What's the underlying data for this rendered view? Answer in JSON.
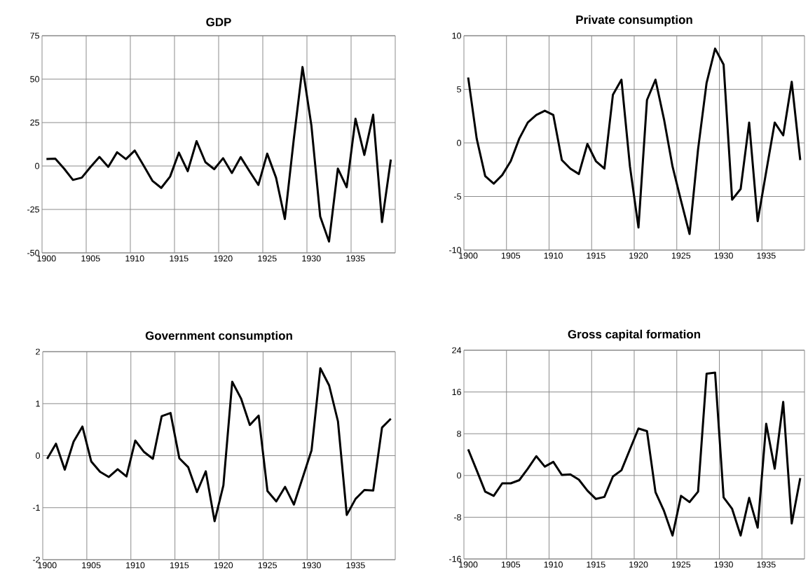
{
  "chart_data": [
    {
      "type": "line",
      "title": "GDP",
      "categories": [
        "1900",
        null,
        null,
        null,
        null,
        "1905",
        null,
        null,
        null,
        null,
        "1910",
        null,
        null,
        null,
        null,
        "1915",
        null,
        null,
        null,
        null,
        "1920",
        null,
        null,
        null,
        null,
        "1925",
        null,
        null,
        null,
        null,
        "1930",
        null,
        null,
        null,
        null,
        "1935",
        null,
        null,
        null,
        null
      ],
      "values": [
        4,
        4.2,
        -1.5,
        -8,
        -6.7,
        -0.5,
        5.2,
        -0.5,
        7.9,
        4,
        8.9,
        0.3,
        -8.5,
        -12.6,
        -6.1,
        7.7,
        -3,
        14.3,
        2.2,
        -1.8,
        4.5,
        -4,
        5.1,
        -3,
        -10.9,
        7.1,
        -6.7,
        -30.5,
        15,
        57,
        23.5,
        -29,
        -43.5,
        -1.5,
        -12.2,
        27.2,
        6.4,
        29.5,
        -32.3,
        3.7
      ],
      "color": "#000000",
      "ylim": [
        -50,
        75
      ],
      "yticks": [
        -50,
        -25,
        0,
        25,
        50,
        75
      ],
      "grid": true
    },
    {
      "type": "line",
      "title": "Private consumption",
      "categories": [
        "1900",
        null,
        null,
        null,
        null,
        "1905",
        null,
        null,
        null,
        null,
        "1910",
        null,
        null,
        null,
        null,
        "1915",
        null,
        null,
        null,
        null,
        "1920",
        null,
        null,
        null,
        null,
        "1925",
        null,
        null,
        null,
        null,
        "1930",
        null,
        null,
        null,
        null,
        "1935",
        null,
        null,
        null,
        null
      ],
      "values": [
        6.1,
        0.4,
        -3.1,
        -3.8,
        -3,
        -1.7,
        0.4,
        1.9,
        2.6,
        3,
        2.6,
        -1.6,
        -2.4,
        -2.9,
        -0.1,
        -1.7,
        -2.4,
        4.5,
        5.9,
        -2.2,
        -7.9,
        4,
        5.9,
        2.2,
        -2.2,
        -5.4,
        -8.5,
        -0.6,
        5.6,
        8.8,
        7.3,
        -5.3,
        -4.3,
        1.9,
        -7.3,
        -2.7,
        1.9,
        0.7,
        5.7,
        -1.6
      ],
      "color": "#000000",
      "ylim": [
        -10,
        10
      ],
      "yticks": [
        -10,
        -5,
        0,
        5,
        10
      ],
      "grid": true
    },
    {
      "type": "line",
      "title": "Government consumption",
      "categories": [
        "1900",
        null,
        null,
        null,
        null,
        "1905",
        null,
        null,
        null,
        null,
        "1910",
        null,
        null,
        null,
        null,
        "1915",
        null,
        null,
        null,
        null,
        "1920",
        null,
        null,
        null,
        null,
        "1925",
        null,
        null,
        null,
        null,
        "1930",
        null,
        null,
        null,
        null,
        "1935",
        null,
        null,
        null,
        null
      ],
      "values": [
        -0.06,
        0.23,
        -0.27,
        0.27,
        0.56,
        -0.11,
        -0.31,
        -0.41,
        -0.26,
        -0.4,
        0.29,
        0.07,
        -0.06,
        0.76,
        0.82,
        -0.05,
        -0.22,
        -0.7,
        -0.3,
        -1.26,
        -0.57,
        1.42,
        1.1,
        0.59,
        0.77,
        -0.68,
        -0.88,
        -0.6,
        -0.94,
        -0.42,
        0.1,
        1.68,
        1.35,
        0.66,
        -1.14,
        -0.83,
        -0.66,
        -0.67,
        0.54,
        0.71
      ],
      "color": "#000000",
      "ylim": [
        -2,
        2
      ],
      "yticks": [
        -2,
        -1,
        0,
        1,
        2
      ],
      "grid": true
    },
    {
      "type": "line",
      "title": "Gross capital formation",
      "categories": [
        "1900",
        null,
        null,
        null,
        null,
        "1905",
        null,
        null,
        null,
        null,
        "1910",
        null,
        null,
        null,
        null,
        "1915",
        null,
        null,
        null,
        null,
        "1920",
        null,
        null,
        null,
        null,
        "1925",
        null,
        null,
        null,
        null,
        "1930",
        null,
        null,
        null,
        null,
        "1935",
        null,
        null,
        null,
        null
      ],
      "values": [
        5,
        1,
        -3.1,
        -3.9,
        -1.5,
        -1.5,
        -0.9,
        1.3,
        3.7,
        1.7,
        2.6,
        0.1,
        0.2,
        -0.8,
        -2.9,
        -4.5,
        -4.1,
        -0.2,
        1,
        5,
        9,
        8.5,
        -3.2,
        -6.8,
        -11.5,
        -3.9,
        -5.1,
        -3.1,
        19.5,
        19.7,
        -4.2,
        -6.4,
        -11.5,
        -4.3,
        -10,
        9.9,
        1.3,
        14.1,
        -9.2,
        -0.5
      ],
      "color": "#000000",
      "ylim": [
        -16,
        24
      ],
      "yticks": [
        -16,
        -8,
        0,
        8,
        16,
        24
      ],
      "grid": true
    }
  ]
}
